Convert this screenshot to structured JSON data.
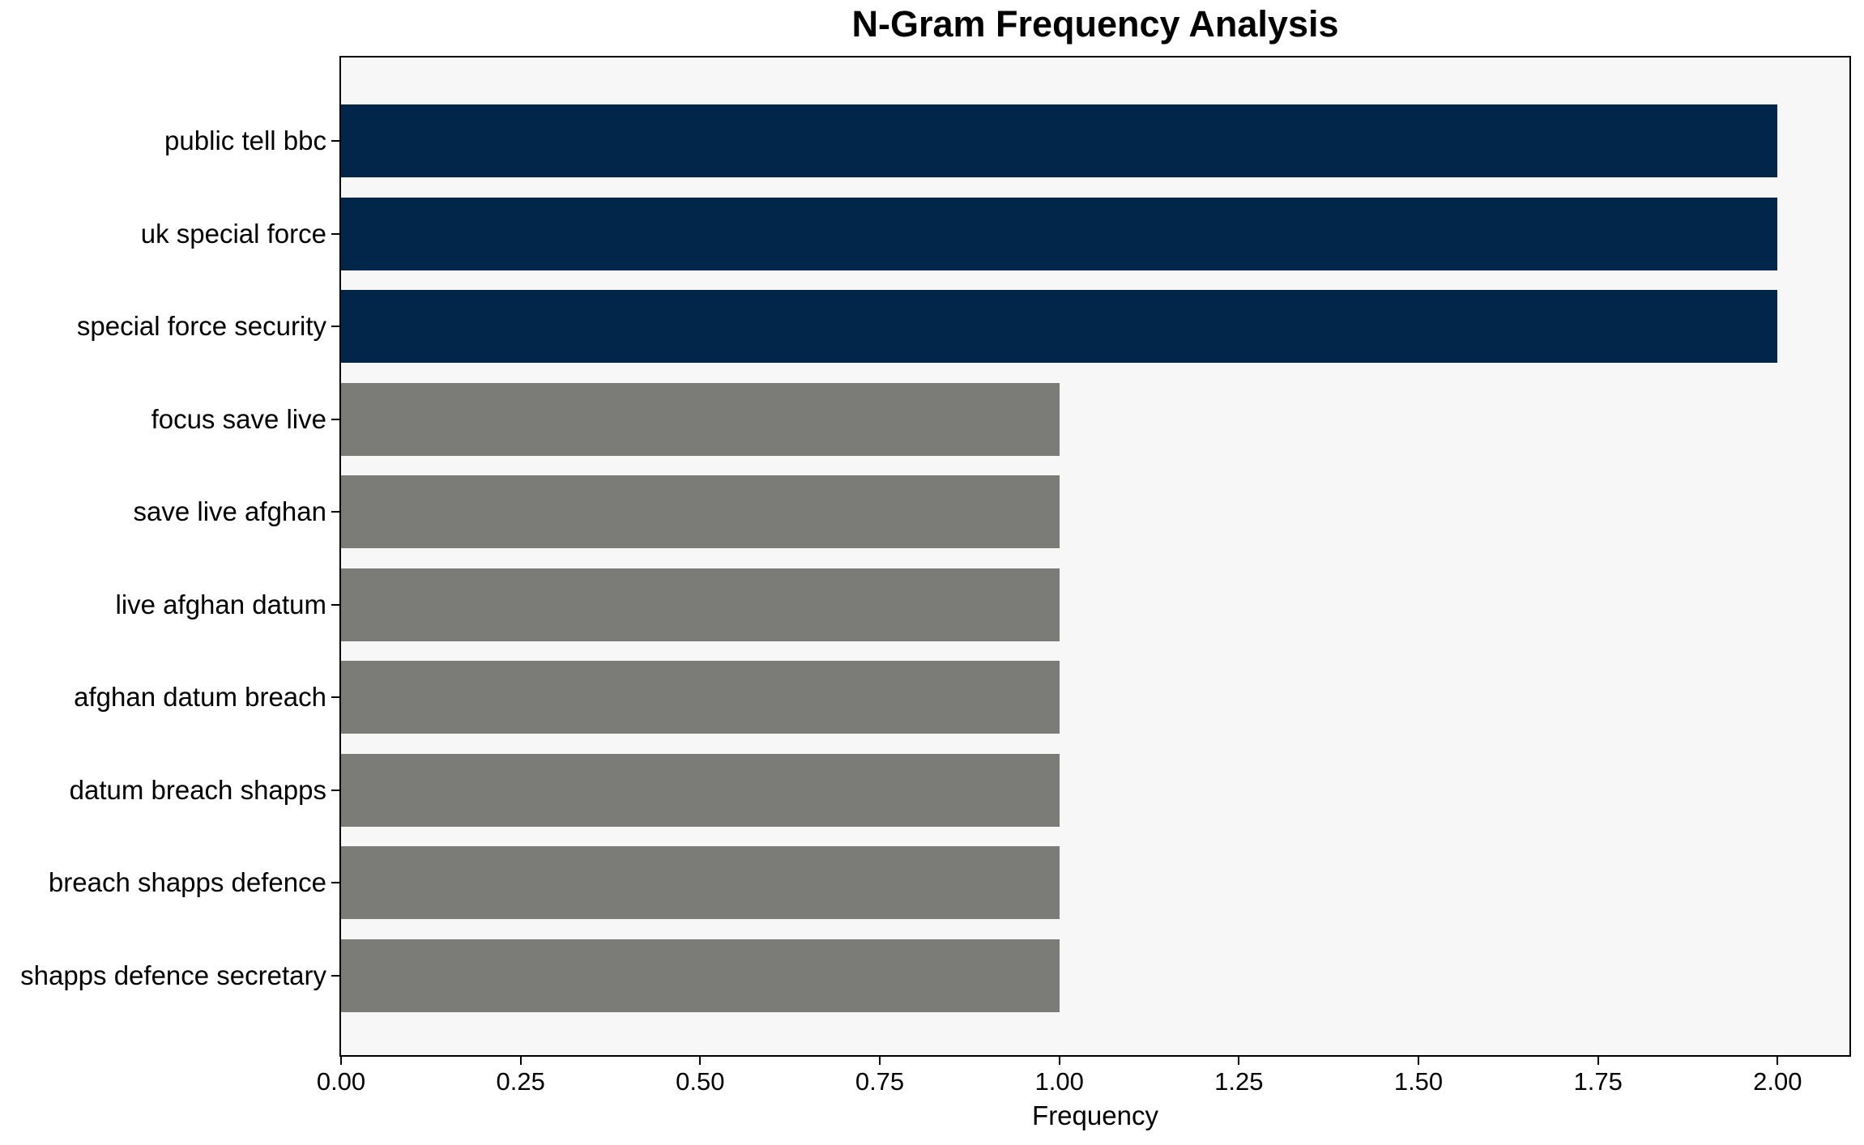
{
  "figure": {
    "background": "#ffffff"
  },
  "chart_data": {
    "type": "bar",
    "orientation": "horizontal",
    "title": "N-Gram Frequency Analysis",
    "xlabel": "Frequency",
    "ylabel": "",
    "categories": [
      "public tell bbc",
      "uk special force",
      "special force security",
      "focus save live",
      "save live afghan",
      "live afghan datum",
      "afghan datum breach",
      "datum breach shapps",
      "breach shapps defence",
      "shapps defence secretary"
    ],
    "values": [
      2,
      2,
      2,
      1,
      1,
      1,
      1,
      1,
      1,
      1
    ],
    "bar_colors": [
      "#02254a",
      "#02254a",
      "#02254a",
      "#7b7b78",
      "#7b7b78",
      "#7b7b78",
      "#7b7b78",
      "#7b7b78",
      "#7b7b78",
      "#7b7b78"
    ],
    "highlight_color": "#02254a",
    "base_color": "#7b7b78",
    "xlim": [
      0,
      2.1
    ],
    "xticks": [
      0,
      0.25,
      0.5,
      0.75,
      1.0,
      1.25,
      1.5,
      1.75,
      2.0
    ],
    "xtick_labels": [
      "0.00",
      "0.25",
      "0.50",
      "0.75",
      "1.00",
      "1.25",
      "1.50",
      "1.75",
      "2.00"
    ],
    "grid": false,
    "legend": null,
    "plot_background": "#f7f7f7",
    "spine_color": "#000000"
  }
}
